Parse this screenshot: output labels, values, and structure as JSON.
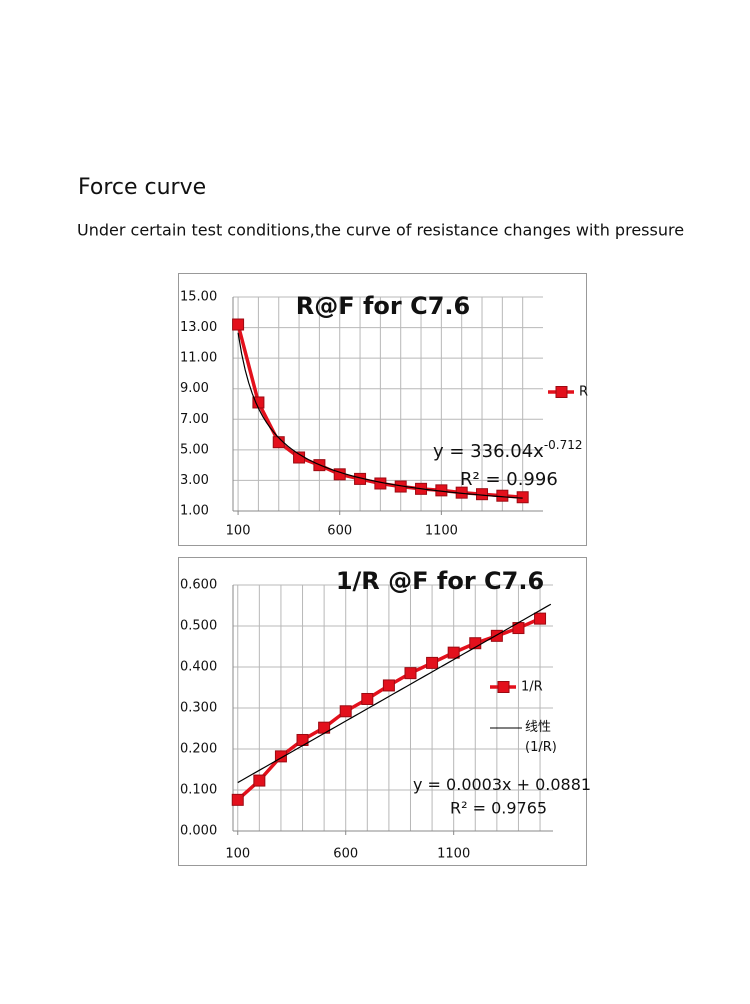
{
  "header": {
    "title": "Force curve",
    "subtitle": "Under certain test conditions,the curve of resistance changes with pressure"
  },
  "chart_data": [
    {
      "type": "line",
      "title": "R@F for C7.6",
      "x": [
        100,
        200,
        300,
        400,
        500,
        600,
        700,
        800,
        900,
        1000,
        1100,
        1200,
        1300,
        1400,
        1500
      ],
      "series": [
        {
          "name": "R",
          "color": "#e3101c",
          "values": [
            13.2,
            8.1,
            5.5,
            4.5,
            4.0,
            3.4,
            3.1,
            2.8,
            2.6,
            2.45,
            2.35,
            2.2,
            2.1,
            2.0,
            1.9
          ]
        }
      ],
      "xlim": [
        75,
        1600
      ],
      "xticks": [
        100,
        600,
        1100
      ],
      "ylim": [
        1,
        15
      ],
      "yticks": [
        {
          "value": 1,
          "label": "1.00"
        },
        {
          "value": 3,
          "label": "3.00"
        },
        {
          "value": 5,
          "label": "5.00"
        },
        {
          "value": 7,
          "label": "7.00"
        },
        {
          "value": 9,
          "label": "9.00"
        },
        {
          "value": 11,
          "label": "11.00"
        },
        {
          "value": 13,
          "label": "13.00"
        },
        {
          "value": 15,
          "label": "15.00"
        }
      ],
      "grid": true,
      "legend": "right",
      "trendline": {
        "type": "power",
        "a": 336.04,
        "b": -0.712,
        "color": "#000000"
      },
      "annotations": {
        "equation": "y = 336.04x",
        "exponent": "-0.712",
        "r_squared": "R² = 0.996"
      }
    },
    {
      "type": "line",
      "title": "1/R @F for C7.6",
      "x": [
        100,
        200,
        300,
        400,
        500,
        600,
        700,
        800,
        900,
        1000,
        1100,
        1200,
        1300,
        1400,
        1500
      ],
      "series": [
        {
          "name": "1/R",
          "color": "#e3101c",
          "values": [
            0.076,
            0.123,
            0.182,
            0.222,
            0.252,
            0.292,
            0.322,
            0.355,
            0.385,
            0.41,
            0.435,
            0.458,
            0.476,
            0.495,
            0.518
          ]
        }
      ],
      "xlim": [
        78,
        1560
      ],
      "xticks": [
        100,
        600,
        1100
      ],
      "ylim": [
        0,
        0.6
      ],
      "yticks": [
        {
          "value": 0,
          "label": "0.000"
        },
        {
          "value": 0.1,
          "label": "0.100"
        },
        {
          "value": 0.2,
          "label": "0.200"
        },
        {
          "value": 0.3,
          "label": "0.300"
        },
        {
          "value": 0.4,
          "label": "0.400"
        },
        {
          "value": 0.5,
          "label": "0.500"
        },
        {
          "value": 0.6,
          "label": "0.600"
        }
      ],
      "grid": true,
      "legend": "right",
      "trendline": {
        "type": "linear",
        "name": "线性 (1/R)",
        "slope": 0.0003,
        "intercept": 0.0881,
        "color": "#000000"
      },
      "annotations": {
        "equation": "y = 0.0003x + 0.0881",
        "r_squared": "R² = 0.9765"
      }
    }
  ]
}
